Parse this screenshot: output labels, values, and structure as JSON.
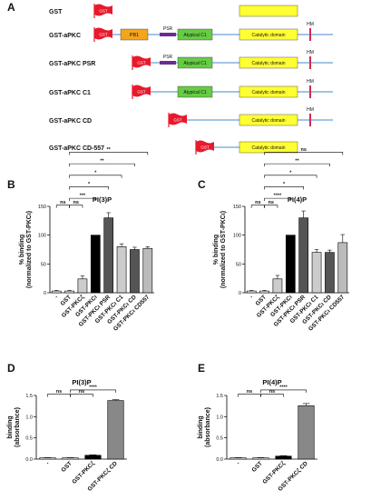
{
  "panel_a": {
    "label": "A",
    "colors": {
      "gst": "#e8192c",
      "pb1": "#f4a51c",
      "psr": "#6a2c91",
      "c1": "#66cc44",
      "cat": "#ffff33",
      "line": "#6aa0d8",
      "hm": "#d42a4a"
    },
    "rows": [
      {
        "name": "GST",
        "flag": "GST"
      },
      {
        "name": "GST-aPKC",
        "flag": "GST",
        "pb1": "PB1",
        "psr": "PSR",
        "c1": "Atypical C1",
        "cat": "Catalytic domain",
        "hm": "HM"
      },
      {
        "name": "GST-aPKC PSR",
        "flag": "GST",
        "psr": "PSR",
        "c1": "Atypical C1",
        "cat": "Catalytic domain",
        "hm": "HM"
      },
      {
        "name": "GST-aPKC C1",
        "flag": "GST",
        "c1": "Atypical C1",
        "cat": "Catalytic domain",
        "hm": "HM"
      },
      {
        "name": "GST-aPKC CD",
        "flag": "GST",
        "cat": "Catalytic domain",
        "hm": "HM"
      },
      {
        "name": "GST-aPKC CD-557",
        "flag": "GST",
        "cat": "Catalytic domain"
      }
    ]
  },
  "chart_data": [
    {
      "panel": "B",
      "type": "bar",
      "title": "PI(3)P",
      "ylabel": "% binding (normalized to GST-PKCι)",
      "ylim": [
        0,
        150
      ],
      "yticks": [
        0,
        50,
        100,
        150
      ],
      "categories": [
        "-",
        "GST",
        "GST-PKCζ",
        "GST-PKCι",
        "GST-PKCι PSR",
        "GST-PKCι C1",
        "GST-PKCι CD",
        "GST-PKCι CD557"
      ],
      "values": [
        3,
        3,
        24,
        100,
        130,
        80,
        75,
        77
      ],
      "errors": [
        1,
        1,
        5,
        0,
        9,
        5,
        4,
        3
      ],
      "fills": [
        "#ffffff",
        "#ffffff",
        "#cccccc",
        "#000000",
        "#555555",
        "#cccccc",
        "#555555",
        "#bbbbbb"
      ],
      "significance": [
        "ns",
        "ns",
        "***",
        "*",
        "*",
        "**",
        "**"
      ]
    },
    {
      "panel": "C",
      "type": "bar",
      "title": "PI(4)P",
      "ylabel": "% binding (normalized to GST-PKCι)",
      "ylim": [
        0,
        150
      ],
      "yticks": [
        0,
        50,
        100,
        150
      ],
      "categories": [
        "-",
        "GST",
        "GST-PKCζ",
        "GST-PKCι",
        "GST-PKCι PSR",
        "GST-PKCι C1",
        "GST-PKCι CD",
        "GST-PKCι CD557"
      ],
      "values": [
        3,
        3,
        24,
        100,
        130,
        70,
        70,
        87
      ],
      "errors": [
        1,
        1,
        6,
        0,
        12,
        5,
        4,
        14
      ],
      "fills": [
        "#ffffff",
        "#ffffff",
        "#cccccc",
        "#000000",
        "#555555",
        "#cccccc",
        "#555555",
        "#bbbbbb"
      ],
      "significance": [
        "ns",
        "ns",
        "****",
        "*",
        "*",
        "**",
        "ns"
      ]
    },
    {
      "panel": "D",
      "type": "bar",
      "title": "PI(3)P",
      "ylabel": "binding (absorbance)",
      "ylim": [
        0,
        1.5
      ],
      "yticks": [
        "0.0",
        "0.5",
        "1.0",
        "1.5"
      ],
      "categories": [
        "-",
        "GST",
        "GST-PKCζ",
        "GST-PKCζ CD"
      ],
      "values": [
        0.03,
        0.03,
        0.09,
        1.38
      ],
      "errors": [
        0.005,
        0.005,
        0.01,
        0.02
      ],
      "fills": [
        "#ffffff",
        "#ffffff",
        "#000000",
        "#888888"
      ],
      "significance": [
        "ns",
        "ns",
        "****"
      ]
    },
    {
      "panel": "E",
      "type": "bar",
      "title": "PI(4)P",
      "ylabel": "binding (absorbance)",
      "ylim": [
        0,
        1.5
      ],
      "yticks": [
        "0.0",
        "0.5",
        "1.0",
        "1.5"
      ],
      "categories": [
        "-",
        "GST",
        "GST-PKCζ",
        "GST-PKCζ CD"
      ],
      "values": [
        0.03,
        0.03,
        0.07,
        1.26
      ],
      "errors": [
        0.005,
        0.005,
        0.01,
        0.05
      ],
      "fills": [
        "#ffffff",
        "#ffffff",
        "#000000",
        "#888888"
      ],
      "significance": [
        "ns",
        "ns",
        "****"
      ]
    }
  ]
}
